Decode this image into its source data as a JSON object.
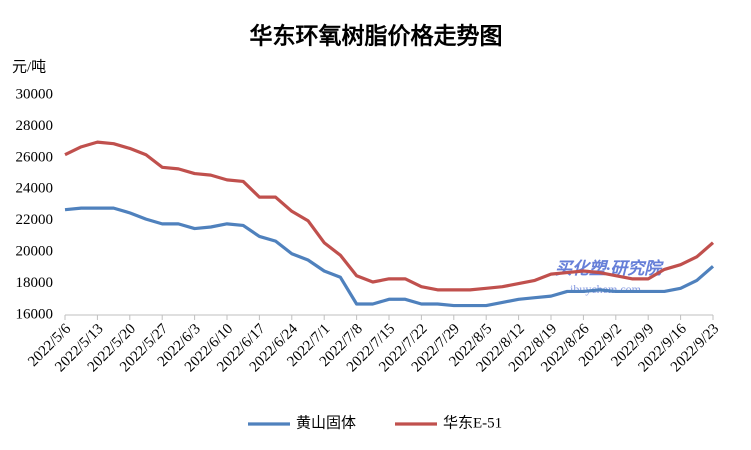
{
  "chart_data": {
    "type": "line",
    "title": "华东环氧树脂价格走势图",
    "y_unit": "元/吨",
    "categories": [
      "2022/5/6",
      null,
      "2022/5/13",
      null,
      "2022/5/20",
      null,
      "2022/5/27",
      null,
      "2022/6/3",
      null,
      "2022/6/10",
      null,
      "2022/6/17",
      null,
      "2022/6/24",
      null,
      "2022/7/1",
      null,
      "2022/7/8",
      null,
      "2022/7/15",
      null,
      "2022/7/22",
      null,
      "2022/7/29",
      null,
      "2022/8/5",
      null,
      "2022/8/12",
      null,
      "2022/8/19",
      null,
      "2022/8/26",
      null,
      "2022/9/2",
      null,
      "2022/9/9",
      null,
      "2022/9/16",
      null,
      "2022/9/23"
    ],
    "series": [
      {
        "name": "黄山固体",
        "color": "#4f81bd",
        "values": [
          22700,
          22800,
          22800,
          22800,
          22500,
          22100,
          21800,
          21800,
          21500,
          21600,
          21800,
          21700,
          21000,
          20700,
          19900,
          19500,
          18800,
          18400,
          16700,
          16700,
          17000,
          17000,
          16700,
          16700,
          16600,
          16600,
          16600,
          16800,
          17000,
          17100,
          17200,
          17500,
          17500,
          17600,
          17500,
          17500,
          17500,
          17500,
          17700,
          18200,
          19100
        ]
      },
      {
        "name": "华东E-51",
        "color": "#c0504d",
        "values": [
          26200,
          26700,
          27000,
          26900,
          26600,
          26200,
          25400,
          25300,
          25000,
          24900,
          24600,
          24500,
          23500,
          23500,
          22600,
          22000,
          20600,
          19800,
          18500,
          18100,
          18300,
          18300,
          17800,
          17600,
          17600,
          17600,
          17700,
          17800,
          18000,
          18200,
          18600,
          18700,
          18800,
          18700,
          18500,
          18300,
          18300,
          18900,
          19200,
          19700,
          20600
        ]
      }
    ],
    "ylim": [
      16000,
      30000
    ],
    "yticks": [
      16000,
      18000,
      20000,
      22000,
      24000,
      26000,
      28000,
      30000
    ],
    "grid": false,
    "legend": "bottom",
    "watermark": {
      "brand": "买化塑·研究院",
      "site": "ibuychem.com"
    }
  }
}
